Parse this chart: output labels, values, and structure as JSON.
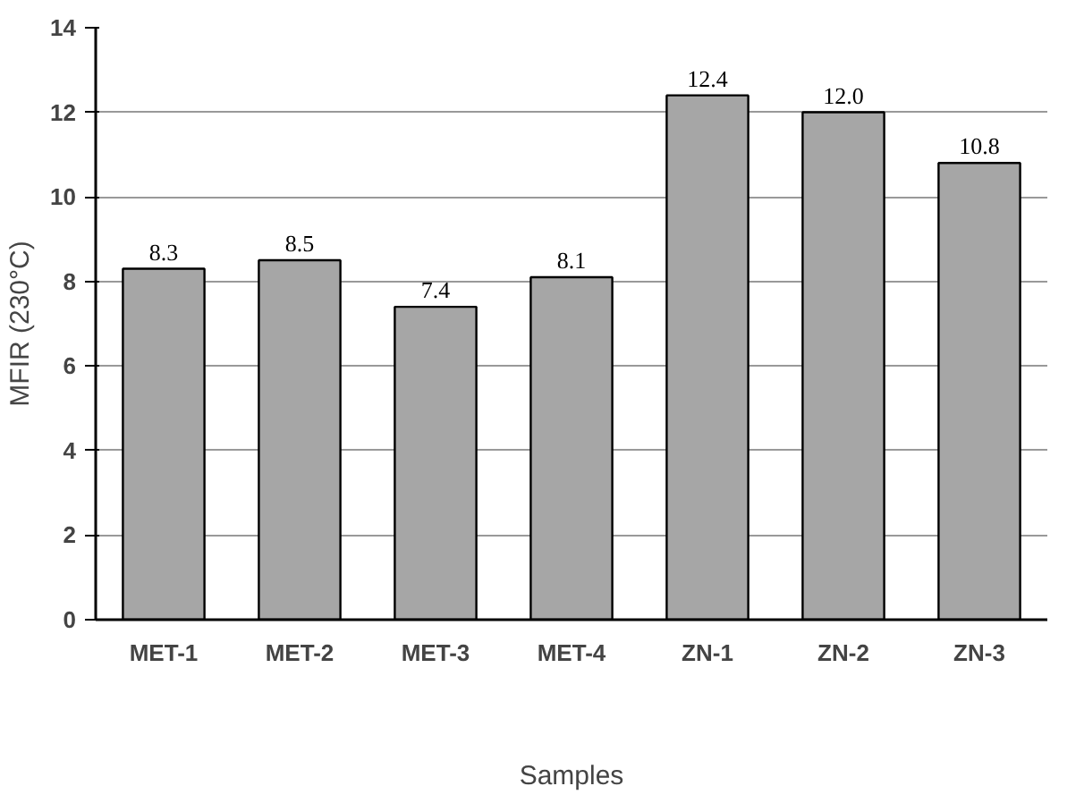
{
  "chart_data": {
    "type": "bar",
    "xlabel": "Samples",
    "ylabel": "MFIR (230°C)",
    "categories": [
      "MET-1",
      "MET-2",
      "MET-3",
      "MET-4",
      "ZN-1",
      "ZN-2",
      "ZN-3"
    ],
    "values": [
      8.3,
      8.5,
      7.4,
      8.1,
      12.4,
      12.0,
      10.8
    ],
    "value_labels": [
      "8.3",
      "8.5",
      "7.4",
      "8.1",
      "12.4",
      "12.0",
      "10.8"
    ],
    "color": "#a6a6a6",
    "ylim": [
      0,
      14
    ],
    "yticks": [
      0,
      2,
      4,
      6,
      8,
      10,
      12,
      14
    ],
    "grid": "y"
  }
}
